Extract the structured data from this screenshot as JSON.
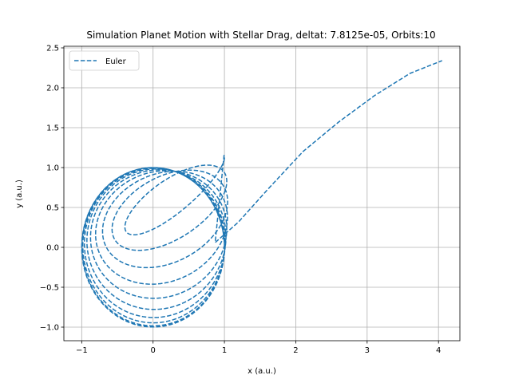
{
  "chart_data": {
    "type": "line",
    "title": "Simulation Planet Motion with Stellar Drag, deltat: 7.8125e-05, Orbits:10",
    "xlabel": "x (a.u.)",
    "ylabel": "y (a.u.)",
    "xlim": [
      -1.25,
      4.3
    ],
    "ylim": [
      -1.17,
      2.52
    ],
    "xticks": [
      -1,
      0,
      1,
      2,
      3,
      4
    ],
    "yticks": [
      -1.0,
      -0.5,
      0.0,
      0.5,
      1.0,
      1.5,
      2.0,
      2.5
    ],
    "xtick_labels": [
      "−1",
      "0",
      "1",
      "2",
      "3",
      "4"
    ],
    "ytick_labels": [
      "−1.0",
      "−0.5",
      "0.0",
      "0.5",
      "1.0",
      "1.5",
      "2.0",
      "2.5"
    ],
    "grid": true,
    "legend_position": "top-left",
    "series": [
      {
        "name": "Euler",
        "color": "#1f77b4",
        "linestyle": "dashed",
        "spiral": {
          "turns": 10,
          "a_outer": 1.0,
          "a_inner": 0.78,
          "b_outer": 1.0,
          "b_inner": 0.14,
          "cx_inner": 0.36,
          "cy_inner": 0.7,
          "tilt_inner": 0.62
        },
        "tail": [
          [
            0.87,
            0.06
          ],
          [
            1.2,
            0.32
          ],
          [
            1.6,
            0.72
          ],
          [
            2.1,
            1.2
          ],
          [
            2.6,
            1.57
          ],
          [
            3.1,
            1.9
          ],
          [
            3.6,
            2.18
          ],
          [
            4.05,
            2.34
          ]
        ]
      }
    ]
  }
}
